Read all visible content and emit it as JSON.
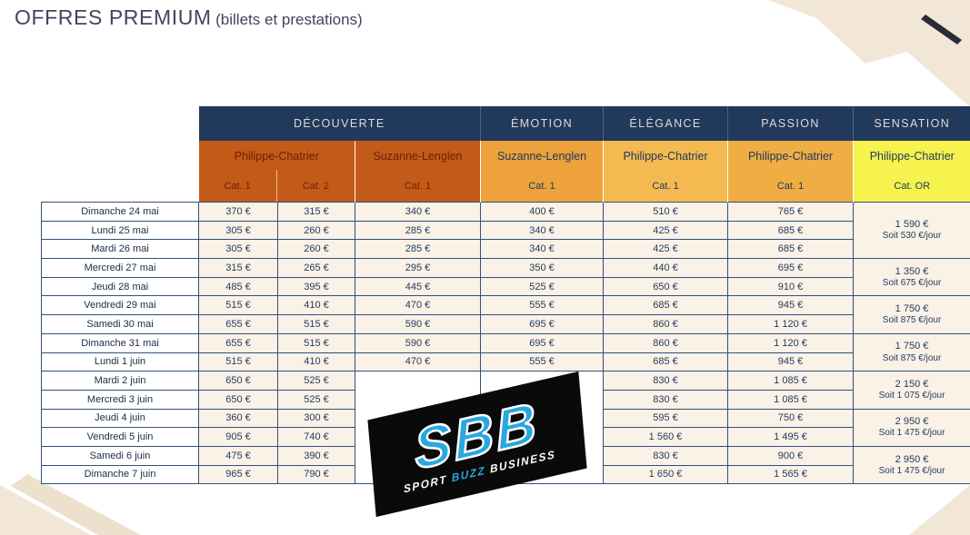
{
  "page": {
    "title": "OFFRES PREMIUM",
    "subtitle": "(billets et prestations)"
  },
  "table": {
    "categories": [
      {
        "label": "DÉCOUVERTE"
      },
      {
        "label": "ÉMOTION"
      },
      {
        "label": "ÉLÉGANCE"
      },
      {
        "label": "PASSION"
      },
      {
        "label": "SENSATION"
      }
    ],
    "venues": [
      {
        "venue": "Philippe-Chatrier",
        "cats": [
          "Cat. 1",
          "Cat. 2"
        ]
      },
      {
        "venue": "Suzanne-Lenglen",
        "cats": [
          "Cat. 1"
        ]
      },
      {
        "venue": "Suzanne-Lenglen",
        "cats": [
          "Cat. 1"
        ]
      },
      {
        "venue": "Philippe-Chatrier",
        "cats": [
          "Cat. 1"
        ]
      },
      {
        "venue": "Philippe-Chatrier",
        "cats": [
          "Cat. 1"
        ]
      },
      {
        "venue": "Philippe-Chatrier",
        "cats": [
          "Cat. OR"
        ]
      }
    ],
    "rows": [
      {
        "date": "Dimanche 24 mai",
        "prices": [
          "370 €",
          "315 €",
          "340 €",
          "400 €",
          "510 €",
          "765 €"
        ]
      },
      {
        "date": "Lundi 25 mai",
        "prices": [
          "305 €",
          "260 €",
          "285 €",
          "340 €",
          "425 €",
          "685 €"
        ]
      },
      {
        "date": "Mardi 26 mai",
        "prices": [
          "305 €",
          "260 €",
          "285 €",
          "340 €",
          "425 €",
          "685 €"
        ]
      },
      {
        "date": "Mercredi 27 mai",
        "prices": [
          "315 €",
          "265 €",
          "295 €",
          "350 €",
          "440 €",
          "695 €"
        ]
      },
      {
        "date": "Jeudi 28 mai",
        "prices": [
          "485 €",
          "395 €",
          "445 €",
          "525 €",
          "650 €",
          "910 €"
        ]
      },
      {
        "date": "Vendredi 29 mai",
        "prices": [
          "515 €",
          "410 €",
          "470 €",
          "555 €",
          "685 €",
          "945 €"
        ]
      },
      {
        "date": "Samedi 30 mai",
        "prices": [
          "655 €",
          "515 €",
          "590 €",
          "695 €",
          "860 €",
          "1 120 €"
        ]
      },
      {
        "date": "Dimanche 31 mai",
        "prices": [
          "655 €",
          "515 €",
          "590 €",
          "695 €",
          "860 €",
          "1 120 €"
        ]
      },
      {
        "date": "Lundi 1 juin",
        "prices": [
          "515 €",
          "410 €",
          "470 €",
          "555 €",
          "685 €",
          "945 €"
        ]
      },
      {
        "date": "Mardi 2 juin",
        "prices": [
          "650 €",
          "525 €",
          null,
          null,
          "830 €",
          "1 085 €"
        ]
      },
      {
        "date": "Mercredi 3 juin",
        "prices": [
          "650 €",
          "525 €",
          null,
          null,
          "830 €",
          "1 085 €"
        ]
      },
      {
        "date": "Jeudi 4 juin",
        "prices": [
          "360 €",
          "300 €",
          null,
          null,
          "595 €",
          "750 €"
        ]
      },
      {
        "date": "Vendredi 5 juin",
        "prices": [
          "905 €",
          "740 €",
          null,
          null,
          "1 560 €",
          "1 495 €"
        ]
      },
      {
        "date": "Samedi 6 juin",
        "prices": [
          "475 €",
          "390 €",
          null,
          null,
          "830 €",
          "900 €"
        ]
      },
      {
        "date": "Dimanche 7 juin",
        "prices": [
          "965 €",
          "790 €",
          null,
          null,
          "1 650 €",
          "1 565 €"
        ]
      }
    ],
    "blank_start_row": 9,
    "sensation_blocks": [
      {
        "price": "1 590 €",
        "per_day": "Soit 530 €/jour",
        "span": 3
      },
      {
        "price": "1 350 €",
        "per_day": "Soit 675 €/jour",
        "span": 2
      },
      {
        "price": "1 750 €",
        "per_day": "Soit 875 €/jour",
        "span": 2
      },
      {
        "price": "1 750 €",
        "per_day": "Soit 875 €/jour",
        "span": 2
      },
      {
        "price": "2 150 €",
        "per_day": "Soit 1 075 €/jour",
        "span": 2
      },
      {
        "price": "2 950 €",
        "per_day": "Soit 1 475 €/jour",
        "span": 2
      },
      {
        "price": "2 950 €",
        "per_day": "Soit 1 475 €/jour",
        "span": 2
      }
    ]
  },
  "watermark": {
    "title": "SBB",
    "words": [
      "SPORT",
      "BUZZ",
      "BUSINESS"
    ]
  },
  "colors": {
    "header_navy": "#21395B",
    "decouverte_orange": "#C35A18",
    "emotion_orange": "#EDA23C",
    "elegance_amber": "#F5B951",
    "passion_amber": "#F0AD44",
    "sensation_yellow": "#F6F24E",
    "cell_beige": "#FAF1E7",
    "border_navy": "#31517A",
    "sbb_blue": "#29A8E0"
  }
}
